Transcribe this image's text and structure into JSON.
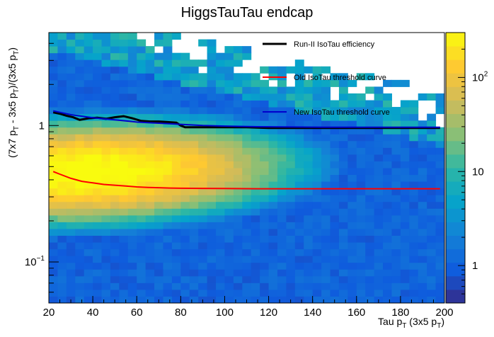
{
  "chart_data": {
    "type": "heatmap",
    "title": "HiggsTauTau endcap",
    "xlabel": {
      "base": "Tau p",
      "sub": "T",
      "tail": " (3x5 p",
      "sub2": "T",
      "end": ")"
    },
    "ylabel": {
      "parts": [
        "(7x7 p",
        "T",
        " - 3x5 p",
        "T",
        ")/(3x5 p",
        "T",
        ")"
      ]
    },
    "x_range": [
      20,
      200
    ],
    "y_range": [
      0.05,
      4.8
    ],
    "y_scale": "log",
    "x_ticks": [
      20,
      40,
      60,
      80,
      100,
      120,
      140,
      160,
      180,
      200
    ],
    "y_ticks": [
      {
        "v": 0.1,
        "base": "10",
        "exp": "−1"
      },
      {
        "v": 1,
        "base": "1",
        "exp": ""
      }
    ],
    "z_scale": "log",
    "z_range": [
      0.4,
      300
    ],
    "z_ticks": [
      {
        "v": 1,
        "base": "1",
        "exp": ""
      },
      {
        "v": 10,
        "base": "10",
        "exp": ""
      },
      {
        "v": 100,
        "base": "10",
        "exp": "2"
      }
    ],
    "legend_position": "top-right",
    "series": [
      {
        "name": "Run-II IsoTau efficiency",
        "color": "#000000",
        "width": 3,
        "x": [
          22,
          25,
          28,
          31,
          34,
          38,
          42,
          46,
          50,
          54,
          58,
          62,
          66,
          70,
          74,
          78,
          80,
          82,
          90,
          100,
          110,
          120,
          130,
          140,
          150,
          160,
          170,
          180,
          190,
          198
        ],
        "y": [
          1.25,
          1.22,
          1.18,
          1.15,
          1.1,
          1.13,
          1.14,
          1.12,
          1.15,
          1.17,
          1.13,
          1.08,
          1.07,
          1.07,
          1.06,
          1.05,
          1.0,
          0.97,
          0.97,
          0.97,
          0.97,
          0.96,
          0.96,
          0.96,
          0.96,
          0.96,
          0.96,
          0.96,
          0.96,
          0.96
        ]
      },
      {
        "name": "Old IsoTau threshold curve",
        "color": "#ff0000",
        "width": 2,
        "x": [
          22,
          25,
          30,
          35,
          40,
          45,
          50,
          55,
          60,
          65,
          70,
          75,
          80,
          90,
          100,
          115,
          130,
          145,
          160,
          180,
          198
        ],
        "y": [
          0.46,
          0.44,
          0.41,
          0.39,
          0.38,
          0.37,
          0.365,
          0.36,
          0.355,
          0.352,
          0.35,
          0.348,
          0.347,
          0.346,
          0.345,
          0.344,
          0.344,
          0.344,
          0.344,
          0.344,
          0.344
        ]
      },
      {
        "name": "New IsoTau threshold curve",
        "color": "#0000cc",
        "width": 2,
        "x": [
          22,
          26,
          30,
          35,
          40,
          45,
          50,
          55,
          60,
          65,
          70,
          75,
          80,
          90,
          100,
          115,
          130,
          145,
          160,
          180,
          198
        ],
        "y": [
          1.28,
          1.24,
          1.2,
          1.17,
          1.14,
          1.12,
          1.1,
          1.08,
          1.06,
          1.05,
          1.04,
          1.03,
          1.02,
          1.0,
          0.99,
          0.98,
          0.975,
          0.97,
          0.97,
          0.97,
          0.97
        ]
      }
    ]
  }
}
